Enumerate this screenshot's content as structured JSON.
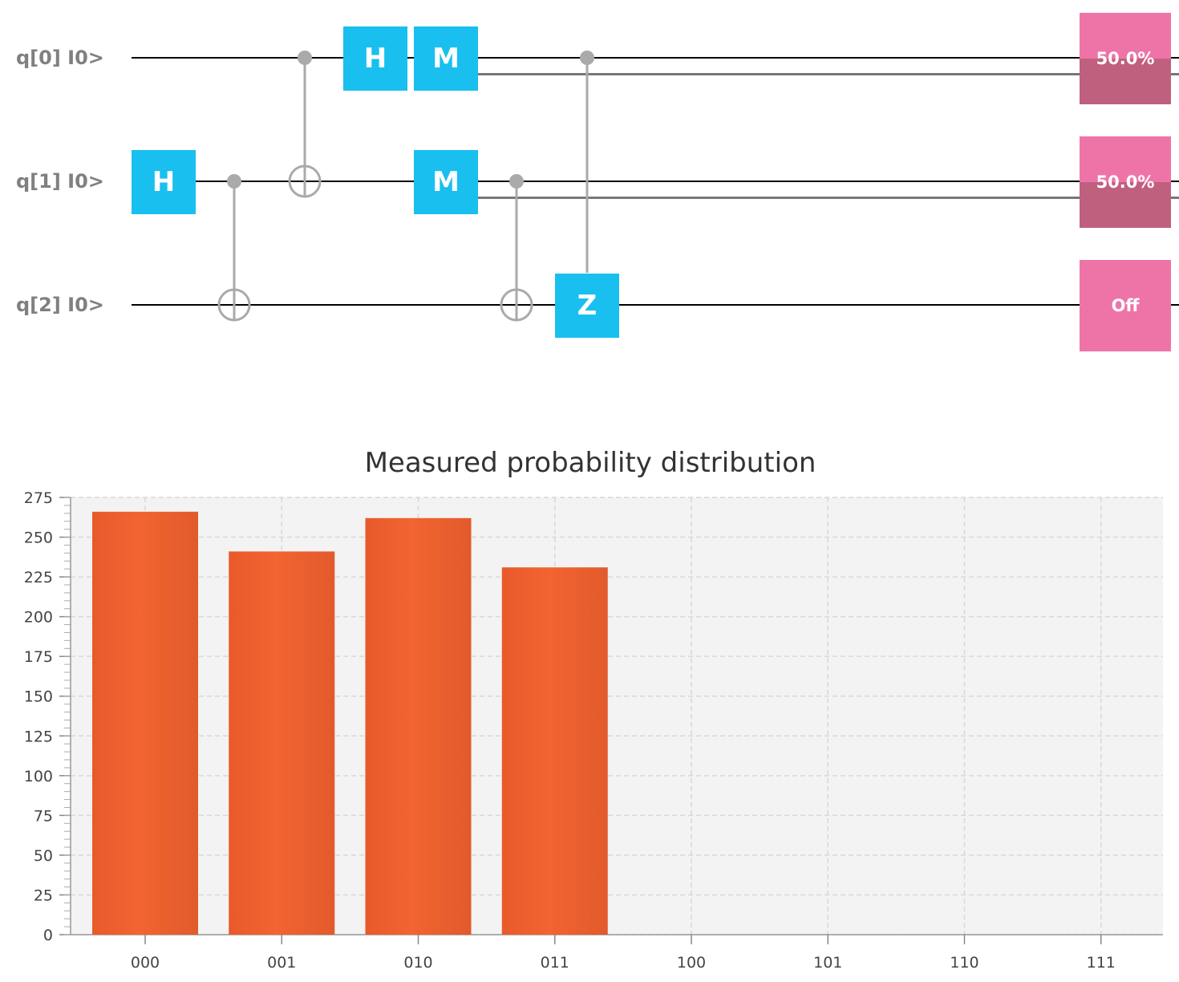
{
  "circuit": {
    "qubits": [
      {
        "label": "q[0] I0>"
      },
      {
        "label": "q[1] I0>"
      },
      {
        "label": "q[2] I0>"
      }
    ],
    "gates": [
      {
        "id": "h1",
        "label": "H",
        "qubit": 1,
        "step": 0
      },
      {
        "id": "h0",
        "label": "H",
        "qubit": 0,
        "step": 3
      },
      {
        "id": "m0",
        "label": "M",
        "qubit": 0,
        "step": 4
      },
      {
        "id": "m1",
        "label": "M",
        "qubit": 1,
        "step": 4
      },
      {
        "id": "z2",
        "label": "Z",
        "qubit": 2,
        "step": 6
      }
    ],
    "controlled": [
      {
        "id": "cnot-1-2",
        "type": "CNOT",
        "control": 1,
        "target": 2,
        "step": 1
      },
      {
        "id": "cnot-0-1",
        "type": "CNOT",
        "control": 0,
        "target": 1,
        "step": 2
      },
      {
        "id": "cnot-1-2b",
        "type": "CNOT",
        "control": 1,
        "target": 2,
        "step": 5
      },
      {
        "id": "cz-0-2",
        "type": "CZ",
        "control": 0,
        "target": 2,
        "step": 6
      }
    ],
    "measured_qubits": [
      0,
      1
    ],
    "probes": [
      {
        "text": "50.0%",
        "value": 0.5
      },
      {
        "text": "50.0%",
        "value": 0.5
      },
      {
        "text": "Off",
        "value": 0
      }
    ]
  },
  "colors": {
    "gate": "#19bfef",
    "probe": "#ee74a8",
    "probe_fill": "#bf607e",
    "bar": "#ee5a2b",
    "label": "#808080"
  },
  "chart_data": {
    "type": "bar",
    "title": "Measured probability distribution",
    "categories": [
      "000",
      "001",
      "010",
      "011",
      "100",
      "101",
      "110",
      "111"
    ],
    "values": [
      266,
      241,
      262,
      231,
      0,
      0,
      0,
      0
    ],
    "xlabel": "",
    "ylabel": "",
    "ylim": [
      0,
      275
    ],
    "yticks": [
      0,
      25,
      50,
      75,
      100,
      125,
      150,
      175,
      200,
      225,
      250,
      275
    ],
    "grid": true
  }
}
